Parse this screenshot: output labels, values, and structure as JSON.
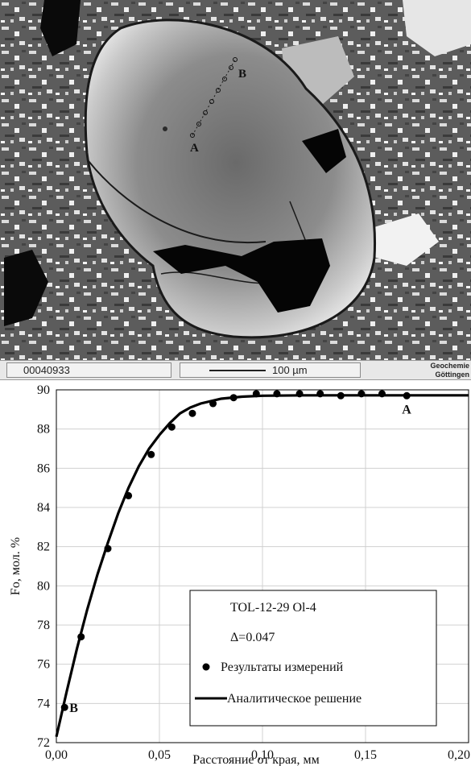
{
  "micrograph": {
    "point_labels": [
      "A",
      "B"
    ],
    "image_number": "00040933",
    "scale_bar_label": "100 µm",
    "lab_line1": "Geochemie",
    "lab_line2": "Göttingen"
  },
  "chart_data": {
    "type": "line",
    "title": "",
    "xlabel": "Расстояние от края, мм",
    "ylabel": "Fo, мол. %",
    "xlim": [
      0,
      0.2
    ],
    "ylim": [
      72,
      90
    ],
    "x_ticks": [
      "0,00",
      "0,05",
      "0,10",
      "0,15",
      "0,20"
    ],
    "y_ticks": [
      "72",
      "74",
      "76",
      "78",
      "80",
      "82",
      "84",
      "86",
      "88",
      "90"
    ],
    "grid": true,
    "legend_position": "bottom-right",
    "legend_title": "TOL-12-29 Ol-4",
    "legend_param": "Δ=0.047",
    "series": [
      {
        "name": "Результаты измерений",
        "marker": "circle",
        "x": [
          0.004,
          0.012,
          0.025,
          0.035,
          0.046,
          0.056,
          0.066,
          0.076,
          0.086,
          0.097,
          0.107,
          0.118,
          0.128,
          0.138,
          0.148,
          0.158,
          0.17
        ],
        "y": [
          73.8,
          77.4,
          81.9,
          84.6,
          86.7,
          88.1,
          88.8,
          89.3,
          89.6,
          89.8,
          89.8,
          89.8,
          89.8,
          89.7,
          89.8,
          89.8,
          89.7
        ]
      },
      {
        "name": "Аналитическое решение",
        "marker": "line",
        "x": [
          0.0,
          0.005,
          0.01,
          0.015,
          0.02,
          0.025,
          0.03,
          0.035,
          0.04,
          0.045,
          0.05,
          0.055,
          0.06,
          0.065,
          0.07,
          0.08,
          0.09,
          0.1,
          0.12,
          0.15,
          0.2
        ],
        "y": [
          72.3,
          74.6,
          76.8,
          78.8,
          80.6,
          82.2,
          83.7,
          85.0,
          86.1,
          87.0,
          87.7,
          88.3,
          88.8,
          89.1,
          89.3,
          89.55,
          89.65,
          89.7,
          89.72,
          89.72,
          89.72
        ]
      }
    ],
    "annotations": [
      "A",
      "B"
    ],
    "colors": {
      "line": "#000000",
      "marker": "#000000",
      "grid": "#d0d0d0"
    }
  }
}
